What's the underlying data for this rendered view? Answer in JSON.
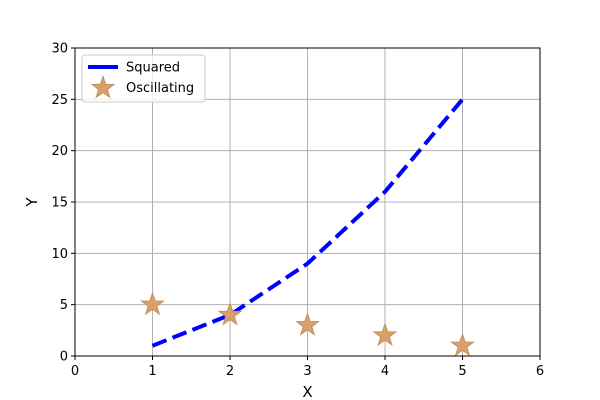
{
  "chart_data": {
    "type": "line",
    "xlabel": "X",
    "ylabel": "Y",
    "xlim": [
      0,
      6
    ],
    "ylim": [
      0,
      30
    ],
    "xticks": [
      "0",
      "1",
      "2",
      "3",
      "4",
      "5",
      "6"
    ],
    "yticks": [
      "0",
      "5",
      "10",
      "15",
      "20",
      "25",
      "30"
    ],
    "grid": true,
    "legend_position": "upper-left",
    "series": [
      {
        "name": "Squared",
        "kind": "line",
        "style": "dashed",
        "color": "#0000ff",
        "x": [
          1,
          2,
          3,
          4,
          5
        ],
        "y": [
          1,
          4,
          9,
          16,
          25
        ]
      },
      {
        "name": "Oscillating",
        "kind": "scatter",
        "marker": "star",
        "color": "#d8a06a",
        "x": [
          1,
          2,
          3,
          4,
          5
        ],
        "y": [
          5,
          4,
          3,
          2,
          1
        ]
      }
    ]
  }
}
